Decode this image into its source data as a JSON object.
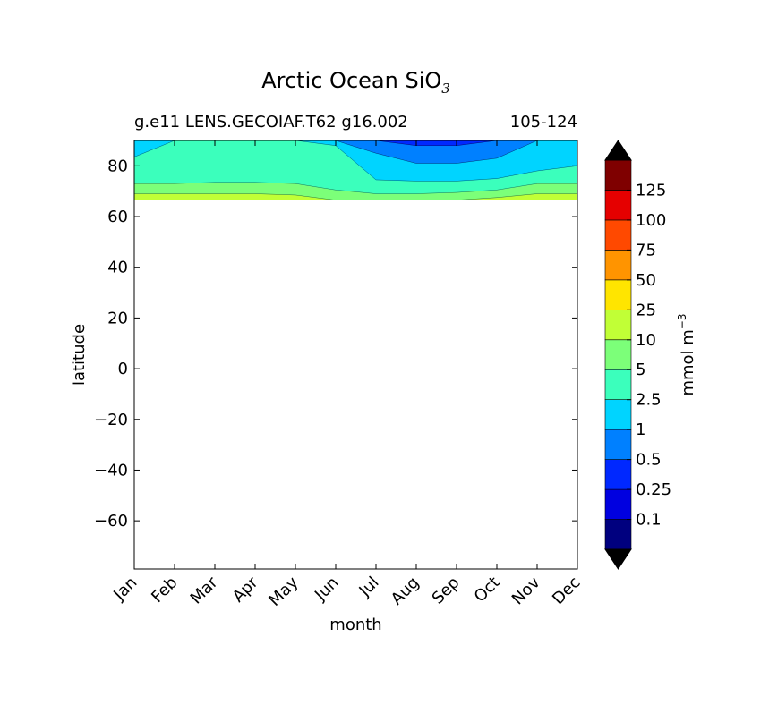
{
  "chart_data": {
    "type": "contourf",
    "title": "Arctic Ocean SiO",
    "title_subscript": "3",
    "subtitle_left": "g.e11 LENS.GECOIAF.T62 g16.002",
    "subtitle_right": "105-124",
    "xlabel": "month",
    "ylabel": "latitude",
    "x_ticks": [
      "Jan",
      "Feb",
      "Mar",
      "Apr",
      "May",
      "Jun",
      "Jul",
      "Aug",
      "Sep",
      "Oct",
      "Nov",
      "Dec"
    ],
    "y_ticks": [
      -60,
      -40,
      -20,
      0,
      20,
      40,
      60,
      80
    ],
    "y_tick_labels": [
      "−60",
      "−40",
      "−20",
      "0",
      "20",
      "40",
      "60",
      "80"
    ],
    "xlim": [
      0,
      11
    ],
    "ylim": [
      -79,
      90
    ],
    "colorbar": {
      "label": "mmol m",
      "label_superscript": "−3",
      "levels": [
        0,
        0.1,
        0.25,
        0.5,
        1,
        2.5,
        5,
        10,
        25,
        50,
        75,
        100,
        125,
        150
      ],
      "tick_labels": [
        "0.1",
        "0.25",
        "0.5",
        "1",
        "2.5",
        "5",
        "10",
        "25",
        "50",
        "75",
        "100",
        "125"
      ],
      "colors": [
        "#00007f",
        "#0000e0",
        "#0028ff",
        "#0080ff",
        "#00d4ff",
        "#3bffbc",
        "#7cff79",
        "#c1ff36",
        "#ffe500",
        "#ff9400",
        "#ff4900",
        "#e50000",
        "#7f0000"
      ],
      "extend": "both",
      "under_color": "#000000",
      "over_color": "#000000"
    },
    "bands": [
      {
        "name": "band-10-25",
        "color": "#c1ff36",
        "lower": [
          66.5,
          66.5,
          66.5,
          66.5,
          66.5,
          66.5,
          66.5,
          66.5,
          66.5,
          66.5,
          66.5,
          66.5
        ],
        "upper": [
          69,
          69,
          69,
          69,
          68.5,
          66.5,
          66.5,
          66.5,
          66.5,
          67.5,
          69,
          69
        ]
      },
      {
        "name": "band-5-10",
        "color": "#7cff79",
        "lower": [
          69,
          69,
          69,
          69,
          68.5,
          66.5,
          66.5,
          66.5,
          66.5,
          67.5,
          69,
          69
        ],
        "upper": [
          73,
          73,
          73.5,
          73.5,
          73,
          70.5,
          69,
          69,
          69.5,
          70.5,
          73,
          73
        ]
      },
      {
        "name": "band-2.5-5",
        "color": "#3bffbc",
        "lower": [
          73,
          73,
          73.5,
          73.5,
          73,
          70.5,
          69,
          69,
          69.5,
          70.5,
          73,
          73
        ],
        "upper": [
          83.5,
          90,
          90,
          90,
          90,
          88,
          74.5,
          74,
          74,
          75,
          78,
          80
        ]
      },
      {
        "name": "band-1-2.5",
        "color": "#00d4ff",
        "lower": [
          83.5,
          90,
          90,
          90,
          90,
          88,
          74.5,
          74,
          74,
          75,
          78,
          80
        ],
        "upper": [
          90,
          90,
          90,
          90,
          90,
          90,
          85,
          81,
          81,
          83,
          90,
          90
        ]
      },
      {
        "name": "band-0.5-1",
        "color": "#0080ff",
        "lower": [
          90,
          90,
          90,
          90,
          90,
          90,
          85,
          81,
          81,
          83,
          90,
          90
        ],
        "upper": [
          90,
          90,
          90,
          90,
          90,
          90,
          90,
          88,
          88,
          90,
          90,
          90
        ]
      },
      {
        "name": "band-0.25-0.5",
        "color": "#0028ff",
        "lower": [
          90,
          90,
          90,
          90,
          90,
          90,
          90,
          88,
          88,
          90,
          90,
          90
        ],
        "upper": [
          90,
          90,
          90,
          90,
          90,
          90,
          90,
          90,
          90,
          90,
          90,
          90
        ]
      }
    ]
  }
}
